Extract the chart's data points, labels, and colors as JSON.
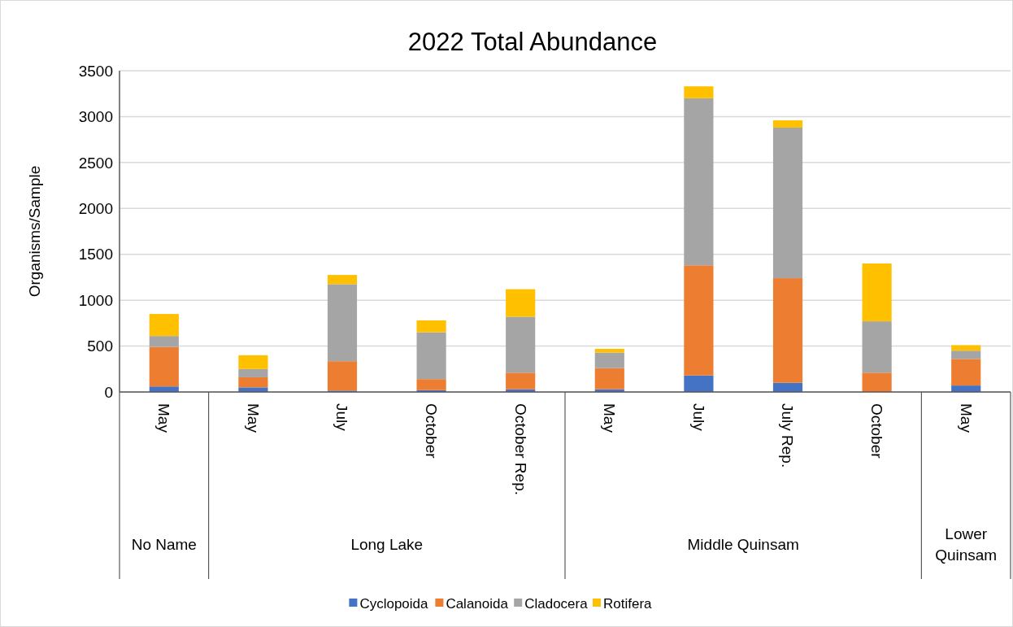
{
  "chart_data": {
    "type": "bar",
    "title": "2022 Total Abundance",
    "ylabel": "Organisms/Sample",
    "stacked": true,
    "categories": [
      "May",
      "May",
      "July",
      "October",
      "October Rep.",
      "May",
      "July",
      "July Rep.",
      "October",
      "May"
    ],
    "annotations": [
      "No Name",
      "Long Lake",
      "Middle Quinsam",
      "Lower Quinsam"
    ],
    "series": [
      {
        "name": "Cyclopoida",
        "color": "#4472c4",
        "values": [
          60,
          50,
          15,
          20,
          30,
          30,
          180,
          100,
          0,
          70
        ]
      },
      {
        "name": "Calanoida",
        "color": "#ed7d31",
        "values": [
          430,
          110,
          320,
          120,
          180,
          230,
          1200,
          1140,
          210,
          290
        ]
      },
      {
        "name": "Cladocera",
        "color": "#a5a5a5",
        "values": [
          120,
          90,
          840,
          510,
          610,
          170,
          1820,
          1640,
          560,
          90
        ]
      },
      {
        "name": "Rotifera",
        "color": "#ffc000",
        "values": [
          240,
          150,
          100,
          130,
          300,
          40,
          130,
          80,
          630,
          60
        ]
      }
    ],
    "ylim": [
      0,
      3500
    ],
    "yticks": [
      0,
      500,
      1000,
      1500,
      2000,
      2500,
      3000,
      3500
    ],
    "grid": "y",
    "legend": "bottom"
  }
}
